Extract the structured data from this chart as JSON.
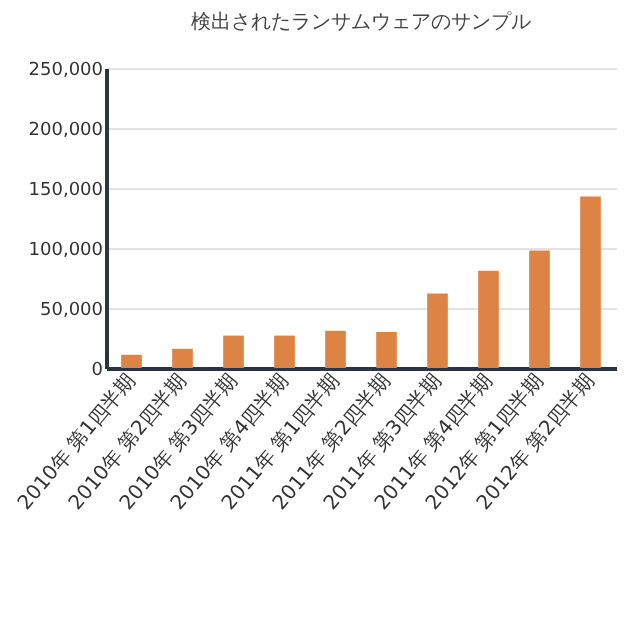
{
  "chart_data": {
    "type": "bar",
    "title": "検出されたランサムウェアのサンプル",
    "categories": [
      "2010年 第1四半期",
      "2010年 第2四半期",
      "2010年 第3四半期",
      "2010年 第4四半期",
      "2011年 第1四半期",
      "2011年 第2四半期",
      "2011年 第3四半期",
      "2011年 第4四半期",
      "2012年 第1四半期",
      "2012年 第2四半期"
    ],
    "values": [
      11000,
      16000,
      27000,
      27000,
      31000,
      30000,
      62000,
      81000,
      98000,
      143000
    ],
    "color": "#dd8444",
    "ylim": [
      0,
      250000
    ],
    "yticks": [
      0,
      {
        "value": 50000,
        "label": "50,000"
      },
      {
        "value": 100000,
        "label": "100,000"
      },
      {
        "value": 150000,
        "label": "150,000"
      },
      {
        "value": 200000,
        "label": "200,000"
      },
      {
        "value": 250000,
        "label": "250,000"
      }
    ],
    "grid": "y"
  }
}
